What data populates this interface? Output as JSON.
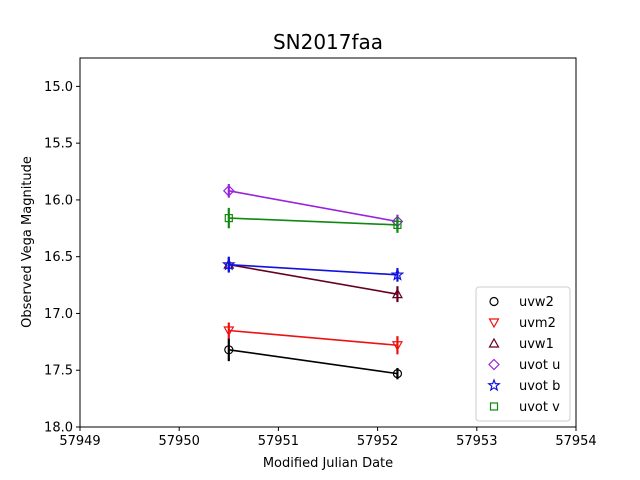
{
  "chart_data": {
    "type": "line",
    "title": "SN2017faa",
    "xlabel": "Modified Julian Date",
    "ylabel": "Observed Vega Magnitude",
    "xlim": [
      57949,
      57954
    ],
    "ylim": [
      18.0,
      14.75
    ],
    "y_inverted": true,
    "grid": false,
    "legend_position": "lower-right",
    "x_ticks": [
      "57949",
      "57950",
      "57951",
      "57952",
      "57953",
      "57954"
    ],
    "y_ticks": [
      "15.0",
      "15.5",
      "16.0",
      "16.5",
      "17.0",
      "17.5",
      "18.0"
    ],
    "series": [
      {
        "name": "uvw2",
        "color": "#000000",
        "marker": "circle",
        "x": [
          57950.5,
          57952.2
        ],
        "y": [
          17.32,
          17.53
        ],
        "yerr": [
          0.1,
          0.05
        ]
      },
      {
        "name": "uvm2",
        "color": "#ee1111",
        "marker": "triangle-down",
        "x": [
          57950.5,
          57952.2
        ],
        "y": [
          17.15,
          17.28
        ],
        "yerr": [
          0.07,
          0.08
        ]
      },
      {
        "name": "uvw1",
        "color": "#660022",
        "marker": "triangle-up",
        "x": [
          57950.5,
          57952.2
        ],
        "y": [
          16.57,
          16.83
        ],
        "yerr": [
          0.06,
          0.07
        ]
      },
      {
        "name": "uvot u",
        "color": "#9922dd",
        "marker": "diamond",
        "x": [
          57950.5,
          57952.2
        ],
        "y": [
          15.92,
          16.19
        ],
        "yerr": [
          0.06,
          0.06
        ]
      },
      {
        "name": "uvot b",
        "color": "#1111dd",
        "marker": "star",
        "x": [
          57950.5,
          57952.2
        ],
        "y": [
          16.57,
          16.66
        ],
        "yerr": [
          0.07,
          0.06
        ]
      },
      {
        "name": "uvot v",
        "color": "#118811",
        "marker": "square",
        "x": [
          57950.5,
          57952.2
        ],
        "y": [
          16.16,
          16.22
        ],
        "yerr": [
          0.09,
          0.07
        ]
      }
    ]
  }
}
